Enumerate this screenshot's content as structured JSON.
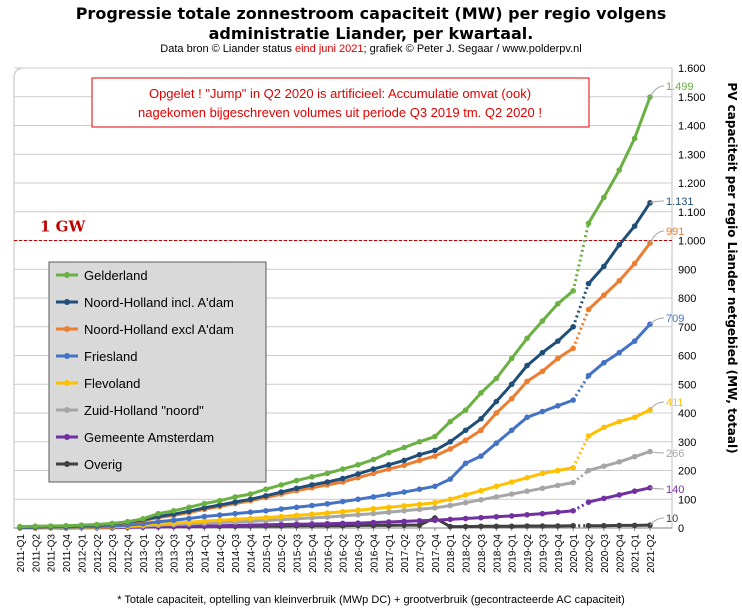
{
  "title_line1": "Progressie totale zonnestroom capaciteit (MW) per regio volgens",
  "title_line2": "administratie  Liander, per kwartaal.",
  "subtitle": {
    "part1": "Data bron © Liander status ",
    "highlight": "eind juni 2021",
    "part2": "; grafiek © Peter J. Segaar / www.polderpv.nl"
  },
  "footnote": "* Totale capaciteit, optelling van kleinverbruik (MWp DC) + grootverbruik (gecontracteerde AC capaciteit)",
  "colors": {
    "annotation_red": "#e00000",
    "gridline": "#cccccc",
    "gw_line": "#c00000"
  },
  "chart_data": {
    "type": "line",
    "x": [
      "2011-Q1",
      "2011-Q2",
      "2011-Q3",
      "2011-Q4",
      "2012-Q1",
      "2012-Q2",
      "2012-Q3",
      "2012-Q4",
      "2013-Q1",
      "2013-Q2",
      "2013-Q3",
      "2013-Q4",
      "2014-Q1",
      "2014-Q2",
      "2014-Q3",
      "2014-Q4",
      "2015-Q1",
      "2015-Q2",
      "2015-Q3",
      "2015-Q4",
      "2016-Q1",
      "2016-Q2",
      "2016-Q3",
      "2016-Q4",
      "2017-Q1",
      "2017-Q2",
      "2017-Q3",
      "2017-Q4",
      "2018-Q1",
      "2018-Q2",
      "2018-Q3",
      "2018-Q4",
      "2019-Q1",
      "2019-Q2",
      "2019-Q3",
      "2019-Q4",
      "2020-Q1",
      "2020-Q2",
      "2020-Q3",
      "2020-Q4",
      "2021-Q1",
      "2021-Q2"
    ],
    "ylabel": "PV capaciteit per regio Liander netgebied (MW, totaal)",
    "ylim": [
      0,
      1600
    ],
    "yticks": [
      0,
      100,
      200,
      300,
      400,
      500,
      600,
      700,
      800,
      900,
      1000,
      1100,
      1200,
      1300,
      1400,
      1500,
      1600
    ],
    "ytick_labels": [
      "0",
      "100",
      "200",
      "300",
      "400",
      "500",
      "600",
      "700",
      "800",
      "900",
      "1.000",
      "1.100",
      "1.200",
      "1.300",
      "1.400",
      "1.500",
      "1.600"
    ],
    "grid": "horizontal",
    "legend_position": "left",
    "dotted_segment": [
      "2020-Q1",
      "2020-Q2"
    ],
    "reference_line": {
      "value": 1000,
      "label": "1 GW"
    },
    "annotation": "Opgelet ! \"Jump\"  in Q2 2020 is artificieel: Accumulatie omvat (ook) nagekomen  bijgeschreven volumes  uit periode  Q3 2019  tm. Q2 2020  !",
    "annotation_line1": "Opgelet ! \"Jump\"  in Q2 2020 is artificieel: Accumulatie omvat (ook)",
    "annotation_line2": "nagekomen  bijgeschreven volumes  uit periode  Q3 2019  tm. Q2 2020  !",
    "series": [
      {
        "name": "Gelderland",
        "color": "#6ab042",
        "end_label": "1.499",
        "values": [
          5,
          6,
          7,
          8,
          10,
          12,
          16,
          22,
          32,
          50,
          60,
          72,
          85,
          95,
          108,
          118,
          135,
          150,
          165,
          178,
          190,
          205,
          220,
          238,
          262,
          280,
          300,
          318,
          370,
          410,
          470,
          520,
          590,
          660,
          720,
          780,
          825,
          1060,
          1150,
          1245,
          1355,
          1499
        ]
      },
      {
        "name": "Noord-Holland incl. A'dam",
        "color": "#1f4e79",
        "end_label": "1.131",
        "values": [
          3,
          4,
          5,
          6,
          8,
          10,
          14,
          20,
          28,
          40,
          48,
          58,
          70,
          80,
          90,
          100,
          112,
          125,
          138,
          150,
          160,
          172,
          188,
          205,
          220,
          235,
          255,
          270,
          300,
          340,
          380,
          440,
          500,
          565,
          610,
          650,
          700,
          850,
          910,
          985,
          1050,
          1131
        ]
      },
      {
        "name": "Noord-Holland excl A'dam",
        "color": "#ed7d31",
        "end_label": "991",
        "values": [
          3,
          4,
          5,
          6,
          8,
          10,
          13,
          18,
          25,
          36,
          44,
          54,
          65,
          75,
          85,
          95,
          106,
          118,
          130,
          140,
          150,
          160,
          175,
          190,
          205,
          218,
          235,
          250,
          275,
          305,
          340,
          400,
          450,
          510,
          545,
          590,
          625,
          760,
          810,
          860,
          920,
          991
        ]
      },
      {
        "name": "Friesland",
        "color": "#4472c4",
        "end_label": "709",
        "values": [
          2,
          2,
          3,
          3,
          4,
          5,
          7,
          10,
          15,
          22,
          27,
          33,
          40,
          45,
          50,
          55,
          60,
          66,
          72,
          78,
          84,
          92,
          100,
          108,
          117,
          125,
          135,
          145,
          170,
          225,
          250,
          295,
          340,
          385,
          405,
          425,
          445,
          530,
          575,
          610,
          650,
          709
        ]
      },
      {
        "name": "Flevoland",
        "color": "#ffc000",
        "end_label": "411",
        "values": [
          1,
          1,
          1,
          2,
          2,
          3,
          4,
          6,
          10,
          14,
          17,
          20,
          24,
          27,
          30,
          33,
          36,
          40,
          44,
          48,
          52,
          57,
          62,
          67,
          72,
          77,
          82,
          88,
          100,
          115,
          130,
          145,
          160,
          175,
          190,
          200,
          210,
          320,
          350,
          370,
          385,
          411
        ]
      },
      {
        "name": "Zuid-Holland \"noord\"",
        "color": "#a6a6a6",
        "end_label": "266",
        "values": [
          1,
          1,
          1,
          2,
          2,
          3,
          4,
          5,
          7,
          10,
          12,
          14,
          17,
          19,
          21,
          23,
          26,
          29,
          32,
          35,
          38,
          42,
          46,
          50,
          55,
          60,
          65,
          70,
          78,
          88,
          98,
          108,
          118,
          128,
          138,
          148,
          158,
          200,
          215,
          230,
          248,
          266
        ]
      },
      {
        "name": "Gemeente Amsterdam",
        "color": "#7030a0",
        "end_label": "140",
        "values": [
          0,
          0,
          0,
          0,
          1,
          1,
          1,
          2,
          3,
          4,
          5,
          6,
          7,
          8,
          9,
          10,
          11,
          12,
          13,
          14,
          15,
          16,
          17,
          19,
          21,
          23,
          25,
          27,
          30,
          33,
          36,
          39,
          42,
          46,
          50,
          55,
          60,
          90,
          103,
          115,
          128,
          140
        ]
      },
      {
        "name": "Overig",
        "color": "#404040",
        "end_label": "10",
        "values": [
          2,
          2,
          2,
          2,
          3,
          3,
          3,
          4,
          4,
          5,
          5,
          5,
          6,
          6,
          6,
          7,
          7,
          7,
          8,
          8,
          8,
          8,
          9,
          9,
          9,
          10,
          10,
          35,
          5,
          5,
          6,
          6,
          6,
          7,
          7,
          7,
          8,
          8,
          8,
          9,
          9,
          10
        ]
      }
    ]
  }
}
